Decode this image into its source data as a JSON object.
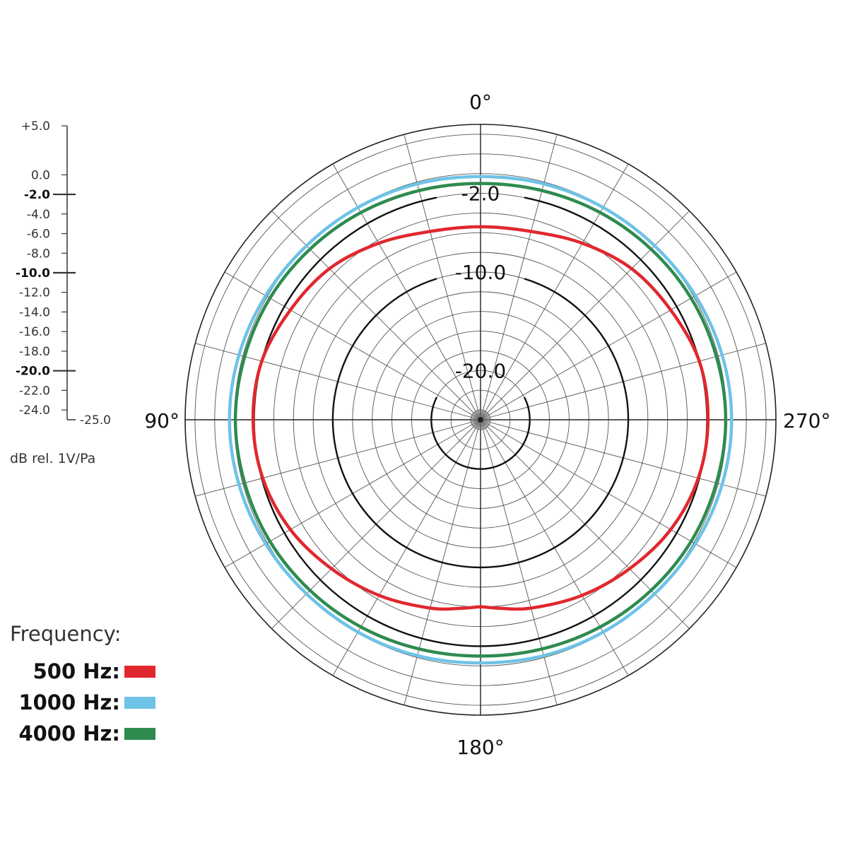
{
  "chart_data": {
    "type": "polar",
    "angle_unit": "degrees",
    "angle_labels": [
      "0°",
      "90°",
      "180°",
      "270°"
    ],
    "radial_axis": {
      "unit_label": "dB rel. 1V/Pa",
      "min": -25.0,
      "max": 5.0,
      "ticks": [
        "+5.0",
        "0.0",
        "-2.0",
        "-4.0",
        "-6.0",
        "-8.0",
        "-10.0",
        "-12.0",
        "-14.0",
        "-16.0",
        "-18.0",
        "-20.0",
        "-22.0",
        "-24.0",
        "-25.0"
      ],
      "tick_values": [
        5,
        0,
        -2,
        -4,
        -6,
        -8,
        -10,
        -12,
        -14,
        -16,
        -18,
        -20,
        -22,
        -24,
        -25
      ],
      "major_ticks": [
        "-2.0",
        "-10.0",
        "-20.0"
      ],
      "highlighted_rings": [
        {
          "value": -2,
          "label": "-2.0"
        },
        {
          "value": -10,
          "label": "-10.0"
        },
        {
          "value": -20,
          "label": "-20.0"
        }
      ]
    },
    "legend": {
      "title": "Frequency:",
      "placement": "bottom-left"
    },
    "series": [
      {
        "name": "500 Hz:",
        "color": "#e0282e",
        "angles": [
          0,
          15,
          30,
          45,
          60,
          75,
          90,
          105,
          120,
          135,
          150,
          165,
          175,
          180,
          185,
          195,
          210,
          225,
          240,
          255,
          270,
          285,
          300,
          315,
          330,
          345,
          360
        ],
        "values": [
          -5.4,
          -5.2,
          -4.3,
          -3.3,
          -2.7,
          -2.0,
          -1.9,
          -2.1,
          -2.7,
          -3.6,
          -4.4,
          -5.2,
          -5.8,
          -6.0,
          -5.8,
          -5.2,
          -4.4,
          -3.6,
          -2.7,
          -2.1,
          -1.9,
          -2.0,
          -2.7,
          -3.3,
          -4.3,
          -5.2,
          -5.4
        ]
      },
      {
        "name": "1000 Hz:",
        "color": "#6ec3e6",
        "angles": [
          0,
          15,
          30,
          45,
          60,
          75,
          90,
          105,
          120,
          135,
          150,
          165,
          180,
          195,
          210,
          225,
          240,
          255,
          270,
          285,
          300,
          315,
          330,
          345,
          360
        ],
        "values": [
          -0.3,
          -0.2,
          -0.1,
          0.0,
          0.2,
          0.4,
          0.5,
          0.4,
          0.2,
          0.0,
          -0.1,
          -0.2,
          -0.3,
          -0.2,
          -0.1,
          0.0,
          0.2,
          0.4,
          0.5,
          0.4,
          0.2,
          0.0,
          -0.1,
          -0.2,
          -0.3
        ]
      },
      {
        "name": "4000 Hz:",
        "color": "#2e8b4f",
        "angles": [
          0,
          15,
          30,
          45,
          60,
          75,
          90,
          105,
          120,
          135,
          150,
          165,
          180,
          195,
          210,
          225,
          240,
          255,
          270,
          285,
          300,
          315,
          330,
          345,
          360
        ],
        "values": [
          -1.0,
          -0.9,
          -0.7,
          -0.5,
          -0.3,
          -0.2,
          -0.1,
          -0.2,
          -0.3,
          -0.5,
          -0.7,
          -0.9,
          -1.0,
          -0.9,
          -0.7,
          -0.5,
          -0.3,
          -0.2,
          -0.1,
          -0.2,
          -0.3,
          -0.5,
          -0.7,
          -0.9,
          -1.0
        ]
      }
    ]
  }
}
